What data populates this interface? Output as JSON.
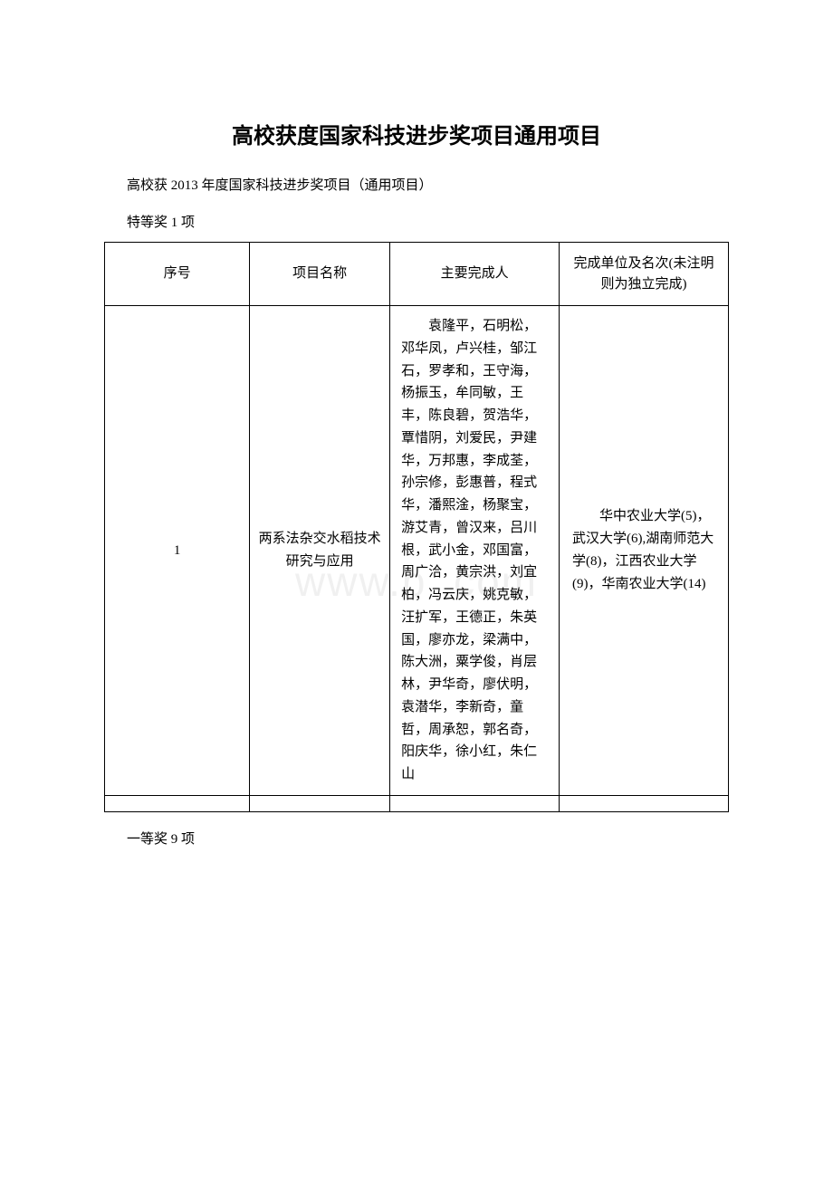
{
  "document": {
    "title": "高校获度国家科技进步奖项目通用项目",
    "subtitle": "高校获 2013 年度国家科技进步奖项目（通用项目）",
    "watermark": "www.b    .com",
    "award_label_top": "特等奖 1 项",
    "award_label_bottom": "一等奖 9 项",
    "table": {
      "headers": {
        "seq": "序号",
        "project_name": "项目名称",
        "main_people": "主要完成人",
        "unit": "完成单位及名次(未注明则为独立完成)"
      },
      "rows": [
        {
          "seq": "1",
          "project_name": "两系法杂交水稻技术研究与应用",
          "main_people": "袁隆平，石明松，邓华凤，卢兴桂，邹江石，罗孝和，王守海，杨振玉，牟同敏，王 丰，陈良碧，贺浩华，覃惜阴，刘爱民，尹建华，万邦惠，李成荃，孙宗修，彭惠普，程式华，潘熙淦，杨聚宝，游艾青，曾汉来，吕川根，武小金，邓国富，周广洽，黄宗洪，刘宜柏，冯云庆，姚克敏，汪扩军，王德正，朱英国，廖亦龙，梁满中，陈大洲，粟学俊，肖层林，尹华奇，廖伏明，袁潜华，李新奇，童 哲，周承恕，郭名奇，阳庆华，徐小红，朱仁山",
          "unit": "华中农业大学(5)，武汉大学(6),湖南师范大学(8)，江西农业大学(9)，华南农业大学(14)"
        }
      ]
    }
  }
}
